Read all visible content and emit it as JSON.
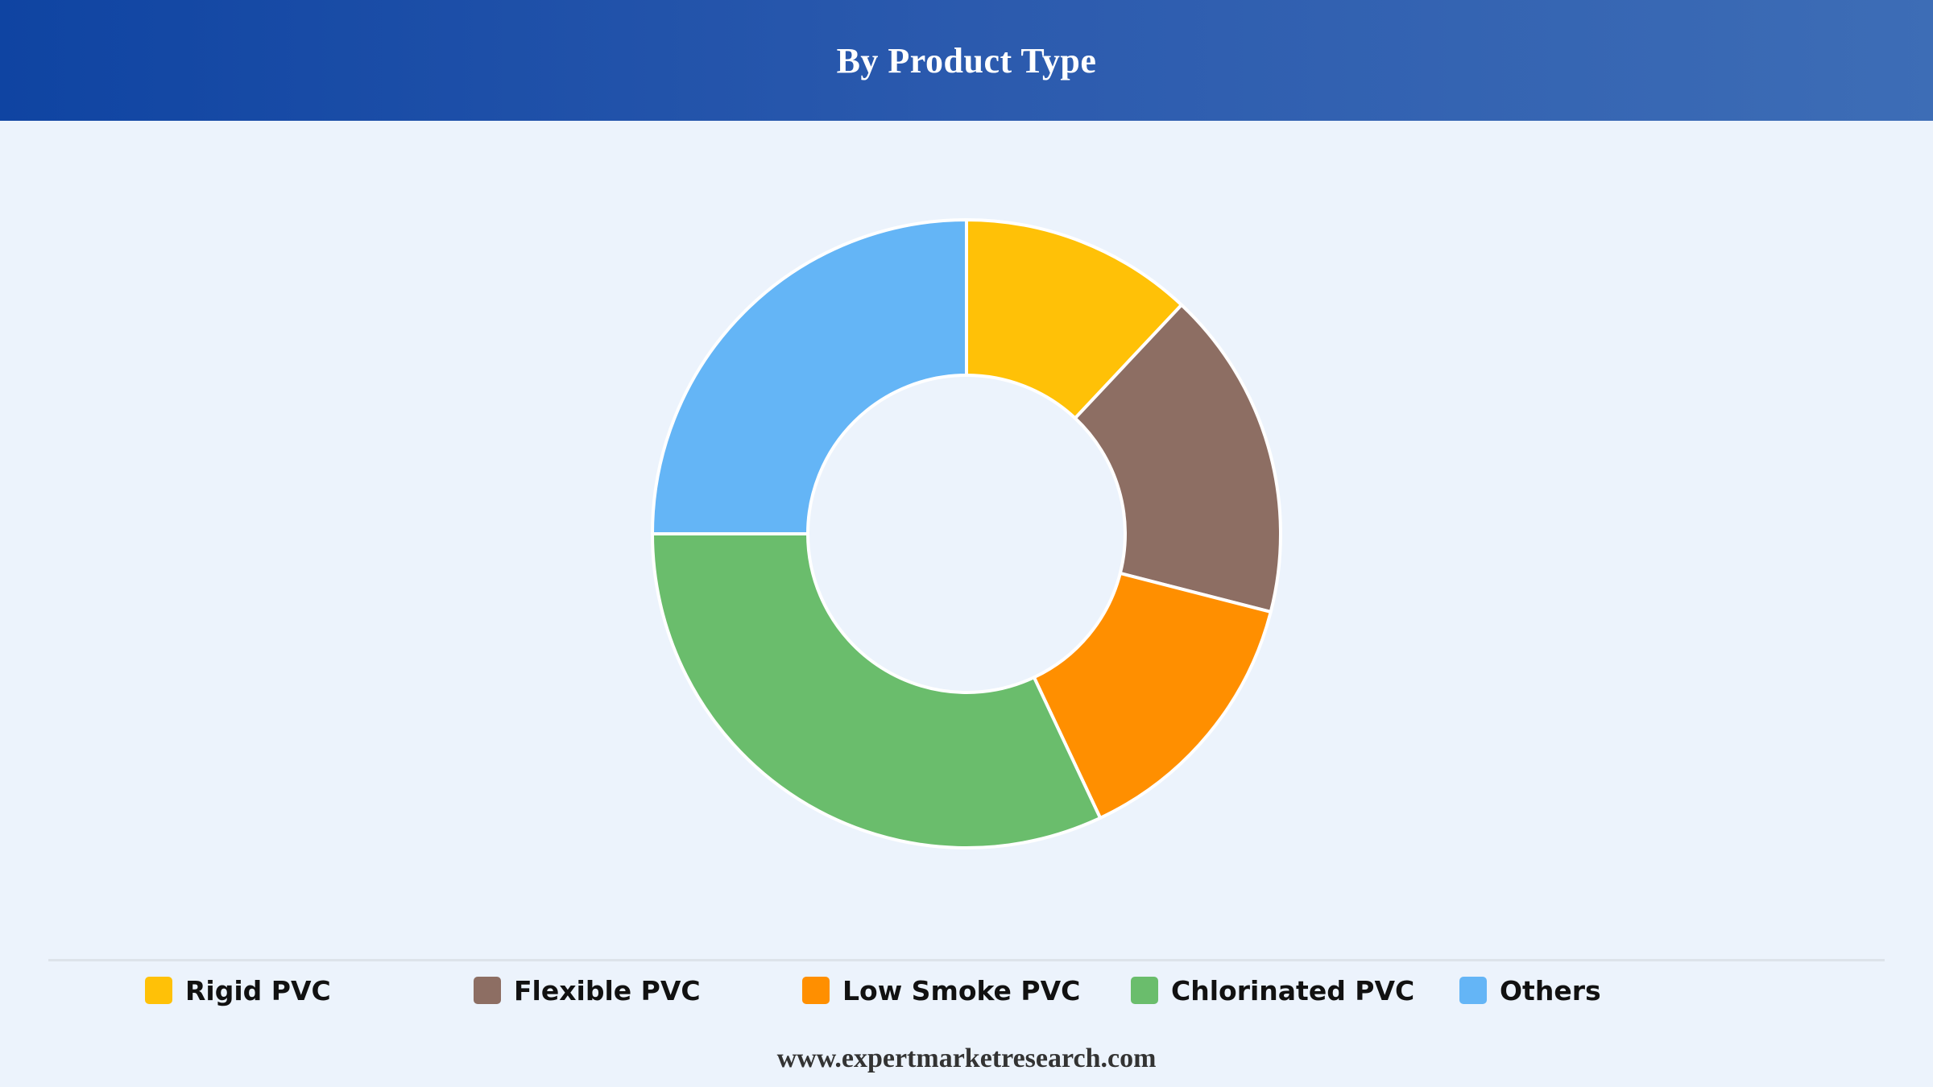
{
  "header": {
    "title": "By Product Type"
  },
  "chart_data": {
    "type": "pie",
    "variant": "donut",
    "categories": [
      "Rigid PVC",
      "Flexible PVC",
      "Low Smoke PVC",
      "Chlorinated PVC",
      "Others"
    ],
    "values": [
      12,
      17,
      14,
      32,
      25
    ],
    "colors": [
      "#ffc107",
      "#8d6e63",
      "#ff8f00",
      "#6abd6c",
      "#64b5f6"
    ],
    "legend_position": "bottom",
    "start_angle_deg": 0,
    "direction": "clockwise"
  },
  "footer": {
    "source": "www.expertmarketresearch.com"
  }
}
